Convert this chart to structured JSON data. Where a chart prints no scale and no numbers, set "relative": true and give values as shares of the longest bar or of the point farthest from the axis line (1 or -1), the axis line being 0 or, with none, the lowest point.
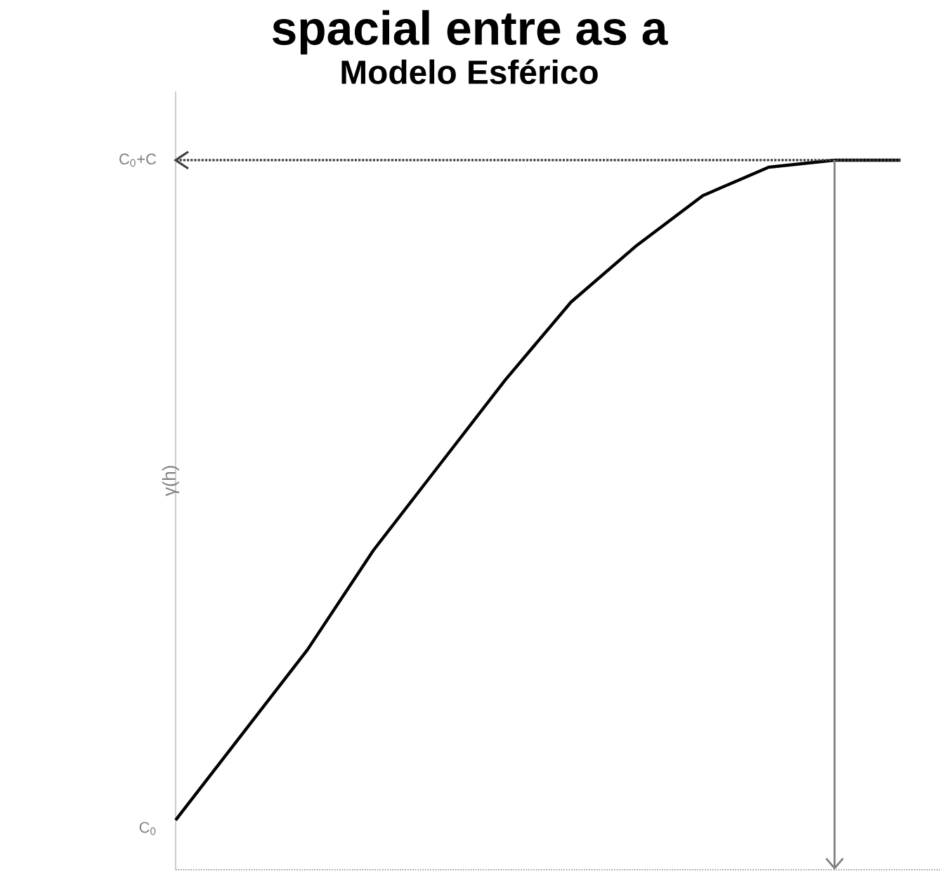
{
  "chart_data": {
    "type": "line",
    "title": "spacial entre as a",
    "subtitle": "Modelo Esférico",
    "ylabel": "γ(h)",
    "relative": true,
    "marker": "none",
    "categories": [
      null,
      null,
      null,
      null,
      null,
      null,
      null,
      null,
      null,
      null,
      null,
      null
    ],
    "series": [
      {
        "color": "#000000",
        "values": [
          0.07,
          0.19,
          0.31,
          0.45,
          0.57,
          0.69,
          0.8,
          0.88,
          0.95,
          0.99,
          1,
          1
        ]
      }
    ],
    "ref_lines": [
      {
        "axis": "y",
        "value": 1,
        "label": "C$_{0}$+C",
        "line_style": "dotted",
        "color": "#404040"
      }
    ],
    "annotations": [
      "C$_{0}$"
    ]
  }
}
